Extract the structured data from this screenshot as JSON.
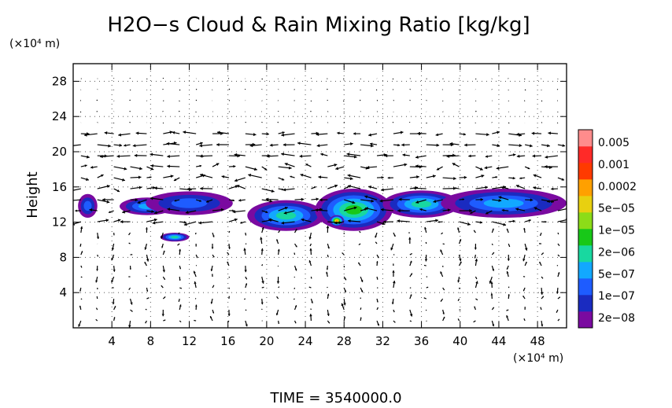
{
  "chart_data": {
    "type": "heatmap",
    "title": "H2O−s Cloud & Rain Mixing Ratio [kg/kg]",
    "ylabel": "Height",
    "xunit": "(×10⁴ m)",
    "yunit": "(×10⁴ m)",
    "footer": "TIME = 3540000.0",
    "xlim": [
      0,
      51
    ],
    "ylim": [
      0,
      30
    ],
    "xticks": [
      "4",
      "8",
      "12",
      "16",
      "20",
      "24",
      "28",
      "32",
      "36",
      "40",
      "44",
      "48"
    ],
    "xtick_values": [
      4,
      8,
      12,
      16,
      20,
      24,
      28,
      32,
      36,
      40,
      44,
      48
    ],
    "yticks": [
      "4",
      "8",
      "12",
      "16",
      "20",
      "24",
      "28"
    ],
    "ytick_values": [
      4,
      8,
      12,
      16,
      20,
      24,
      28
    ],
    "colorbar": {
      "labels": [
        "0.005",
        "0.001",
        "0.0002",
        "5e−05",
        "1e−05",
        "2e−06",
        "5e−07",
        "1e−07",
        "2e−08"
      ],
      "colors": [
        "#7a0aa0",
        "#1a2bc0",
        "#1e5cff",
        "#12a8ff",
        "#18d8a0",
        "#18c818",
        "#8cdc18",
        "#e8d010",
        "#ffa000",
        "#ff3a00",
        "#ff2a28",
        "#ff8c8c"
      ]
    },
    "cloud_regions": [
      {
        "x": [
          0.5,
          2.5
        ],
        "y": [
          12.5,
          15.2
        ],
        "level": 2
      },
      {
        "x": [
          4.8,
          10.5
        ],
        "y": [
          12.8,
          14.8
        ],
        "level": 3
      },
      {
        "x": [
          7.5,
          16.5
        ],
        "y": [
          12.8,
          15.5
        ],
        "level": 2
      },
      {
        "x": [
          18.0,
          26.0
        ],
        "y": [
          11.0,
          14.5
        ],
        "level": 4
      },
      {
        "x": [
          25.0,
          33.0
        ],
        "y": [
          11.0,
          15.8
        ],
        "level": 5
      },
      {
        "x": [
          26.5,
          28.0
        ],
        "y": [
          11.5,
          12.8
        ],
        "level": 8
      },
      {
        "x": [
          32.0,
          40.0
        ],
        "y": [
          12.5,
          15.6
        ],
        "level": 4
      },
      {
        "x": [
          38.0,
          51.0
        ],
        "y": [
          12.5,
          15.8
        ],
        "level": 3
      },
      {
        "x": [
          9.0,
          12.0
        ],
        "y": [
          9.8,
          10.8
        ],
        "level": 4
      }
    ]
  }
}
